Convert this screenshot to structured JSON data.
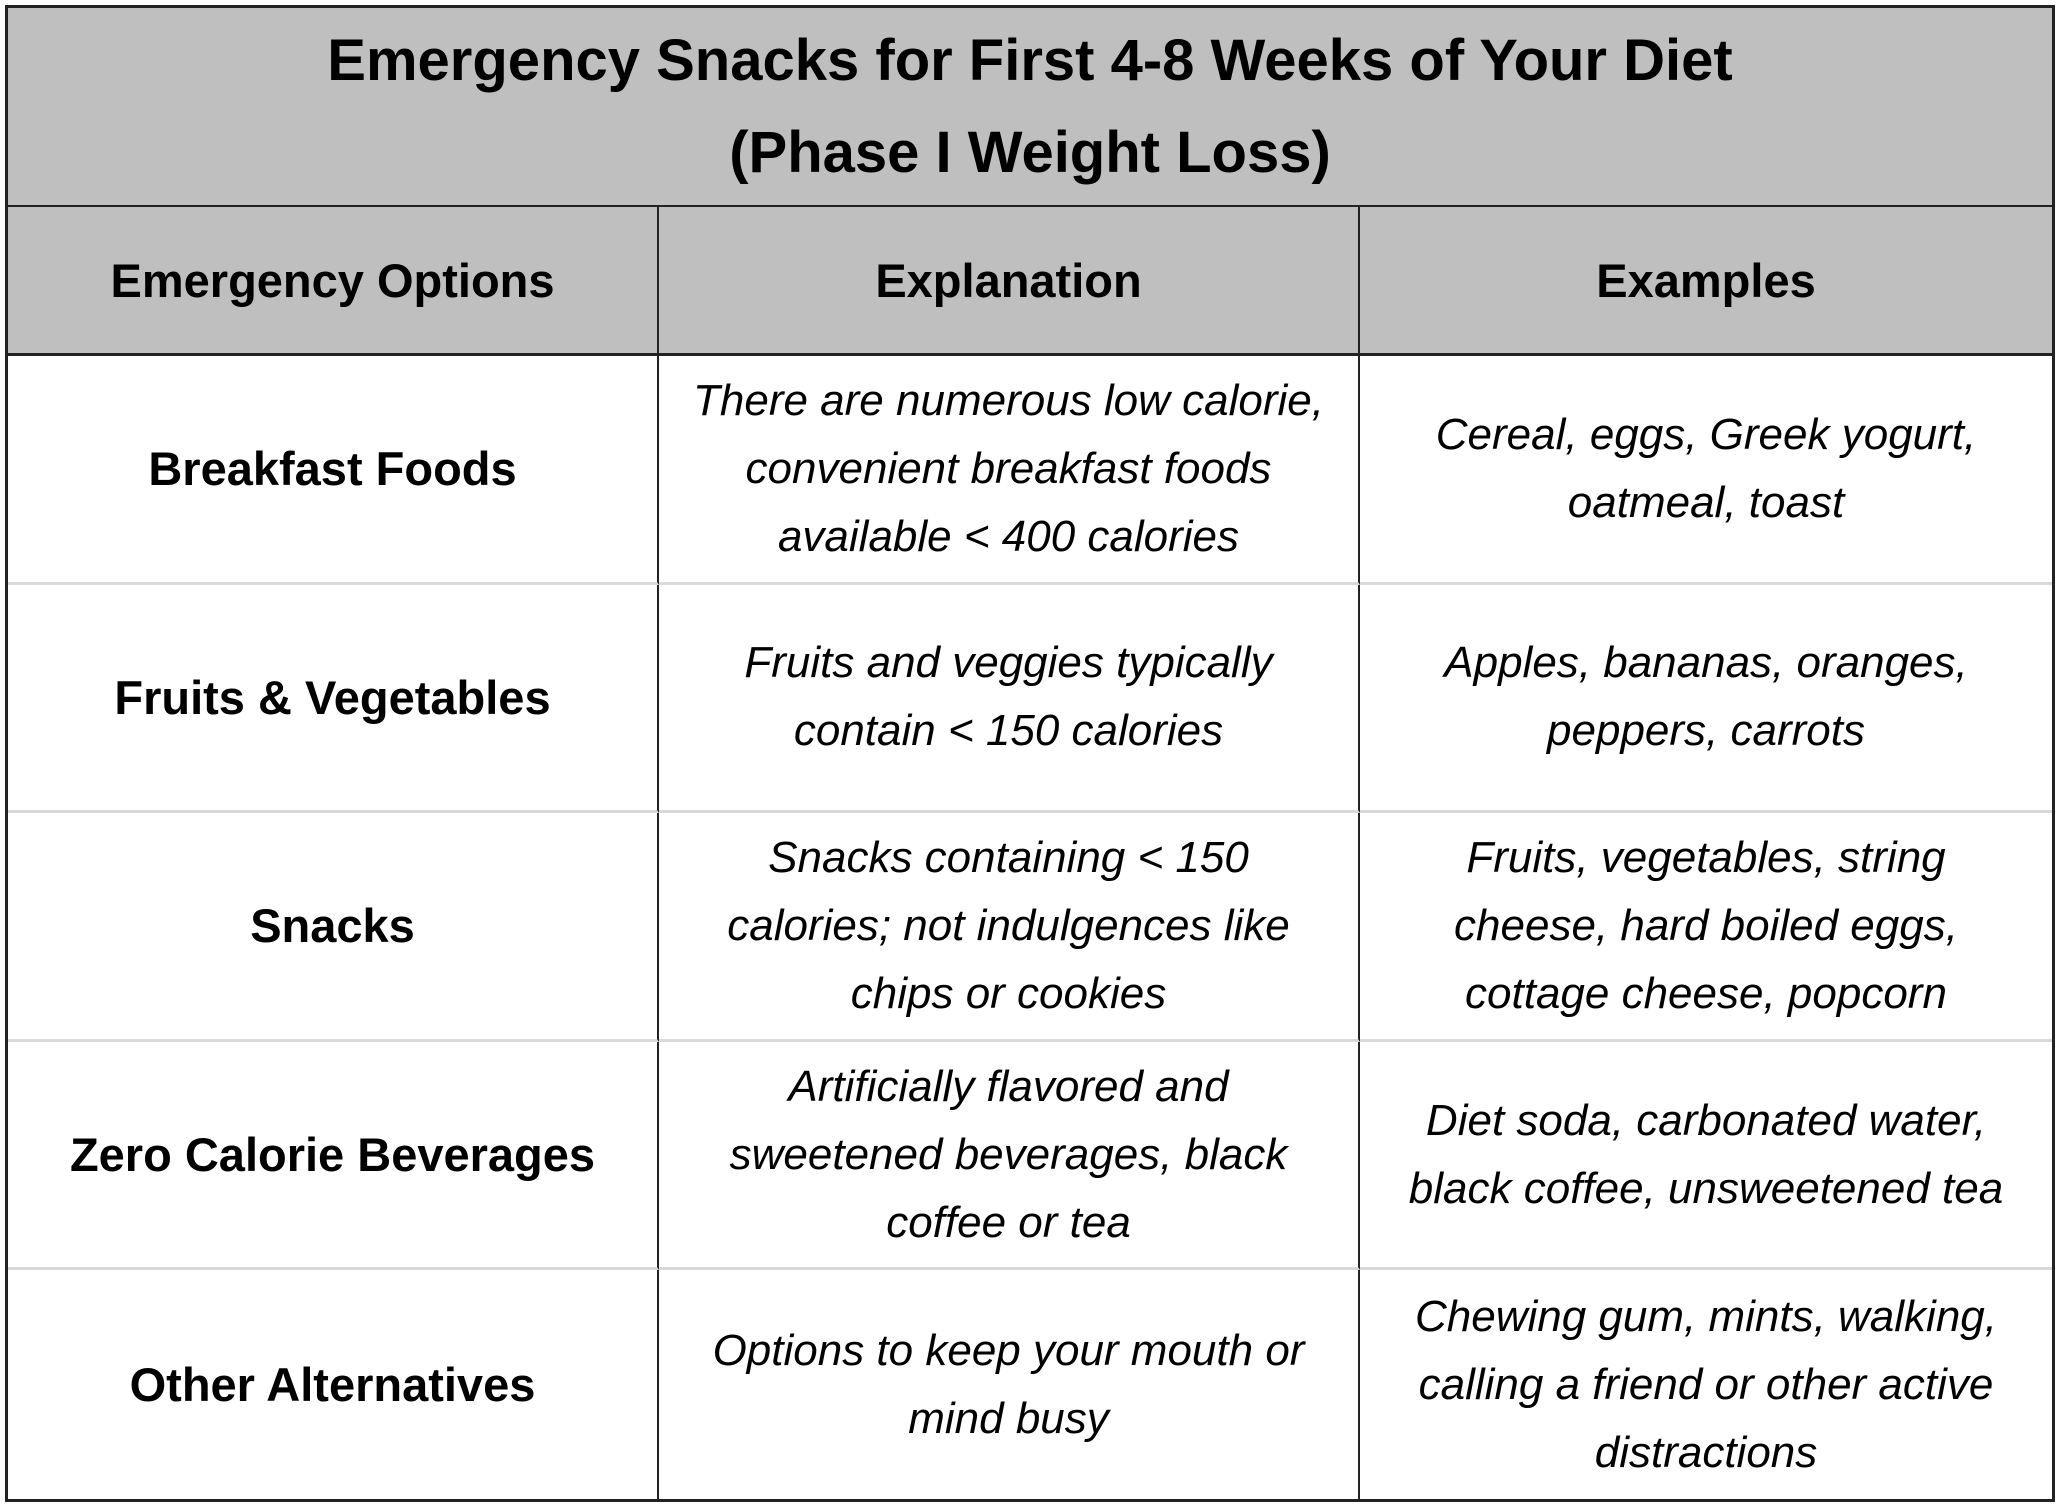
{
  "title": {
    "line1": "Emergency Snacks for First 4-8 Weeks of Your Diet",
    "line2": "(Phase I Weight Loss)"
  },
  "columns": [
    "Emergency Options",
    "Explanation",
    "Examples"
  ],
  "rows": [
    {
      "option": "Breakfast Foods",
      "explanation": [
        "There are numerous low calorie,",
        "convenient breakfast foods",
        "available < 400 calories"
      ],
      "examples": [
        "Cereal, eggs, Greek yogurt,",
        "oatmeal, toast"
      ]
    },
    {
      "option": "Fruits & Vegetables",
      "explanation": [
        "Fruits and veggies typically",
        "contain < 150 calories"
      ],
      "examples": [
        "Apples, bananas, oranges,",
        "peppers, carrots"
      ]
    },
    {
      "option": "Snacks",
      "explanation": [
        "Snacks containing < 150",
        "calories; not indulgences like",
        "chips or cookies"
      ],
      "examples": [
        "Fruits, vegetables, string",
        "cheese, hard boiled eggs,",
        "cottage cheese, popcorn"
      ]
    },
    {
      "option": "Zero Calorie Beverages",
      "explanation": [
        "Artificially flavored and",
        "sweetened beverages, black",
        "coffee or tea"
      ],
      "examples": [
        "Diet soda, carbonated water,",
        "black coffee, unsweetened tea"
      ]
    },
    {
      "option": "Other Alternatives",
      "explanation": [
        "Options to keep your mouth or",
        "mind busy"
      ],
      "examples": [
        "Chewing gum, mints, walking,",
        "calling a friend or other active",
        "distractions"
      ]
    }
  ],
  "colors": {
    "header_bg": "#bfbfbf",
    "border": "#222222",
    "row_divider": "#d9d9d9"
  }
}
